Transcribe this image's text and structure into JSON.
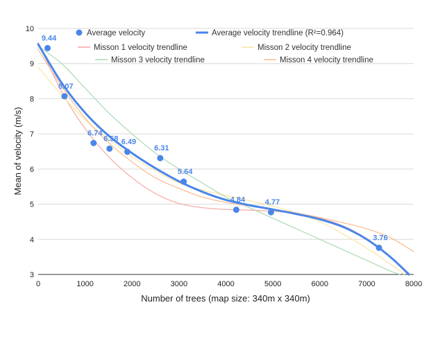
{
  "chart_data": {
    "type": "scatter",
    "xlabel": "Number of trees (map size: 340m x 340m)",
    "ylabel": "Mean of velocity (m/s)",
    "xlim": [
      0,
      8000
    ],
    "ylim": [
      3,
      10
    ],
    "x_ticks": [
      0,
      1000,
      2000,
      3000,
      4000,
      5000,
      6000,
      7000,
      8000
    ],
    "y_ticks": [
      3,
      4,
      5,
      6,
      7,
      8,
      9,
      10
    ],
    "grid": "horizontal",
    "legend_position": "top",
    "series": [
      {
        "name": "Average velocity",
        "kind": "points",
        "color": "#4a86e8",
        "x": [
          200,
          560,
          1180,
          1520,
          1900,
          2600,
          3100,
          4220,
          4960,
          7260
        ],
        "y": [
          9.44,
          8.07,
          6.74,
          6.58,
          6.49,
          6.31,
          5.64,
          4.84,
          4.77,
          3.76
        ],
        "labels": [
          "9.44",
          "8.07",
          "6.74",
          "6.58",
          "6.49",
          "6.31",
          "5.64",
          "4.84",
          "4.77",
          "3.76"
        ]
      },
      {
        "name": "Average velocity trendline (R²=0.964)",
        "kind": "line",
        "color": "#4a86e8",
        "x": [
          0,
          500,
          1000,
          1500,
          2000,
          2500,
          3000,
          3500,
          4000,
          4500,
          5000,
          5500,
          6000,
          6500,
          7000,
          7500,
          7900
        ],
        "y": [
          9.55,
          8.45,
          7.6,
          6.95,
          6.45,
          6.02,
          5.65,
          5.35,
          5.12,
          4.97,
          4.85,
          4.72,
          4.57,
          4.35,
          4.0,
          3.5,
          3.0
        ]
      },
      {
        "name": "Misson 1 velocity trendline",
        "kind": "line",
        "color": "#f4a6a0",
        "x": [
          0,
          500,
          1000,
          1500,
          2000,
          2500,
          3000,
          3500,
          4000,
          4500,
          5000,
          5500,
          6000,
          6500,
          7000,
          7500,
          7800
        ],
        "y": [
          9.6,
          8.2,
          7.15,
          6.35,
          5.75,
          5.3,
          5.02,
          4.9,
          4.85,
          4.83,
          4.8,
          4.73,
          4.6,
          4.38,
          4.02,
          3.5,
          3.1
        ]
      },
      {
        "name": "Misson 2 velocity trendline",
        "kind": "line",
        "color": "#fbe3a0",
        "x": [
          0,
          500,
          1000,
          1500,
          2000,
          2500,
          3000,
          3500,
          4000,
          4500,
          5000,
          5500,
          6000,
          6500,
          7000,
          7500,
          7800
        ],
        "y": [
          8.9,
          8.1,
          7.4,
          6.85,
          6.35,
          5.95,
          5.6,
          5.4,
          5.25,
          5.1,
          4.95,
          4.75,
          4.5,
          4.15,
          3.75,
          3.3,
          3.0
        ]
      },
      {
        "name": "Misson 3 velocity trendline",
        "kind": "line",
        "color": "#a8d8b0",
        "x": [
          0,
          500,
          1000,
          1500,
          2000,
          2500,
          3000,
          3500,
          4000,
          4500,
          5000,
          5500,
          6000,
          6500,
          7000,
          7500,
          7700
        ],
        "y": [
          9.5,
          9.0,
          8.3,
          7.6,
          7.0,
          6.45,
          6.0,
          5.6,
          5.2,
          4.9,
          4.6,
          4.3,
          4.0,
          3.7,
          3.4,
          3.1,
          3.0
        ]
      },
      {
        "name": "Misson 4 velocity trendline",
        "kind": "line",
        "color": "#f9b98a",
        "x": [
          0,
          500,
          1000,
          1500,
          2000,
          2500,
          3000,
          3500,
          4000,
          4500,
          5000,
          5500,
          6000,
          6500,
          7000,
          7500,
          8000
        ],
        "y": [
          9.4,
          8.35,
          7.45,
          6.75,
          6.2,
          5.75,
          5.45,
          5.2,
          5.05,
          4.95,
          4.85,
          4.75,
          4.62,
          4.47,
          4.3,
          4.05,
          3.65
        ]
      }
    ]
  }
}
